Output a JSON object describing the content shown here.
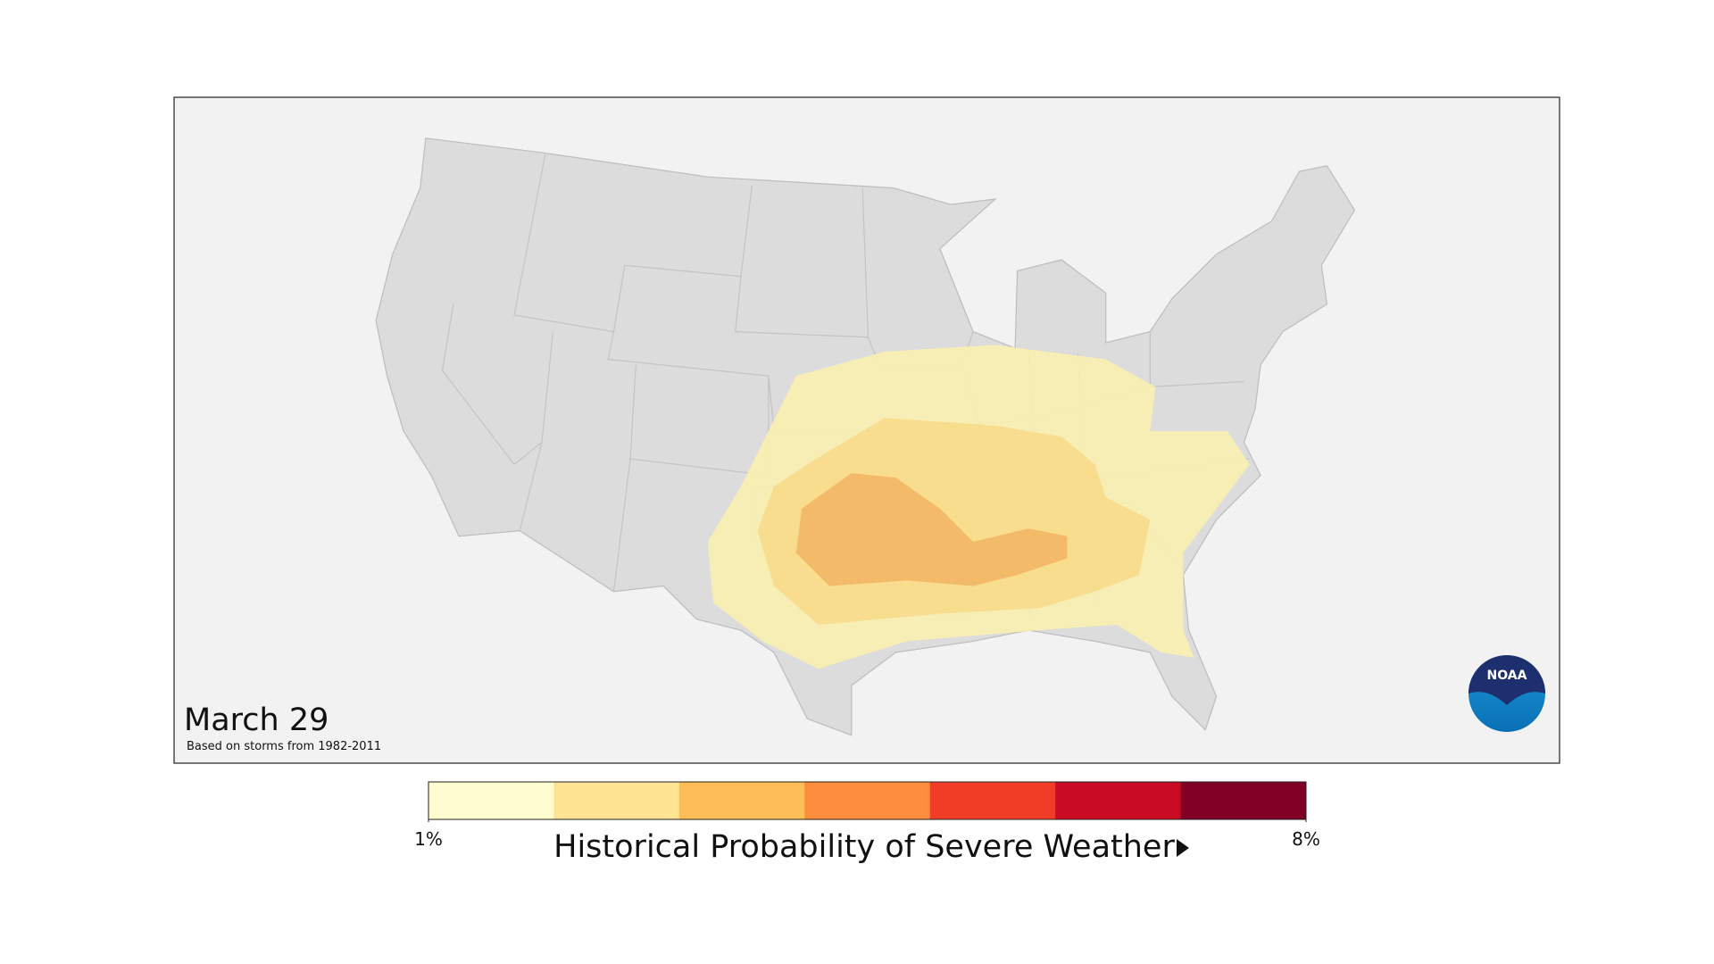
{
  "map": {
    "title": "March 29",
    "subtitle": "Based on storms from 1982-2011",
    "logo": "NOAA",
    "legend": {
      "title": "Historical Probability of Severe Weather",
      "lim": [
        1,
        8
      ],
      "ticks": [
        {
          "value": 1,
          "label": "1%"
        },
        {
          "value": 8,
          "label": "8%"
        }
      ],
      "colors": [
        "#fffdd0",
        "#fee492",
        "#fdbe58",
        "#fd8c3c",
        "#f23d26",
        "#c90b23",
        "#800026"
      ]
    }
  }
}
